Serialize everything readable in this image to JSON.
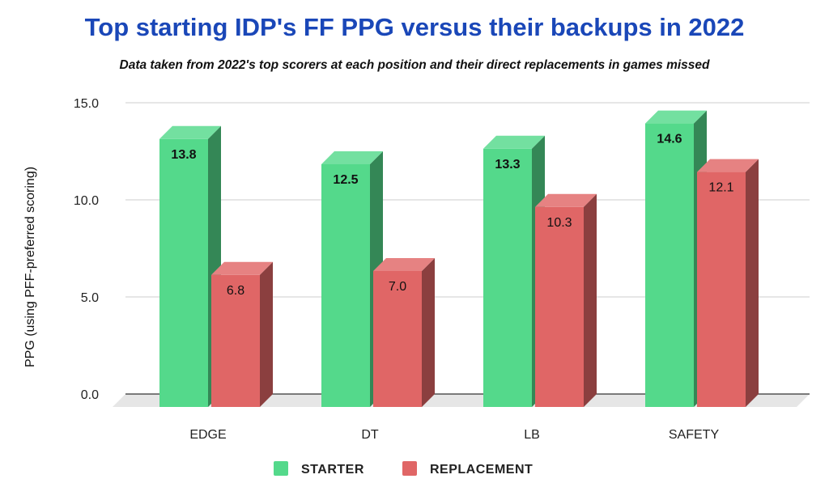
{
  "chart_data": {
    "type": "bar",
    "title": "Top starting IDP's FF PPG versus their backups in 2022",
    "subtitle": "Data taken from 2022's top scorers at each position and their direct replacements in games missed",
    "xlabel": "",
    "ylabel": "PPG (using PFF-preferred scoring)",
    "categories": [
      "EDGE",
      "DT",
      "LB",
      "SAFETY"
    ],
    "series": [
      {
        "name": "STARTER",
        "values": [
          13.8,
          12.5,
          13.3,
          14.6
        ],
        "color": "#54d98b",
        "label_bold": true
      },
      {
        "name": "REPLACEMENT",
        "values": [
          6.8,
          7.0,
          10.3,
          12.1
        ],
        "color": "#e06666",
        "label_bold": false
      }
    ],
    "ylim": [
      0,
      15
    ],
    "yticks": [
      "0.0",
      "5.0",
      "10.0",
      "15.0"
    ],
    "grid": true,
    "legend": "bottom",
    "style": "3d-bar"
  }
}
